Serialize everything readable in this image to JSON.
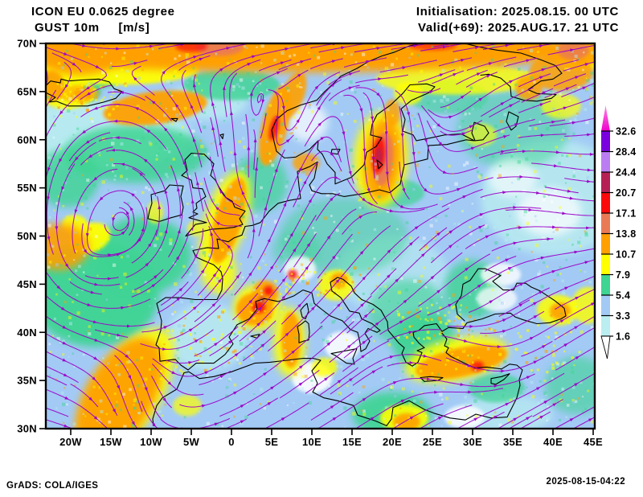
{
  "header": {
    "model": "ICON EU 0.0625 degree",
    "parameter": "GUST 10m     [m/s]",
    "initialisation": "Initialisation: 2025.08.15. 00 UTC",
    "valid": "Valid(+69): 2025.AUG.17. 21 UTC"
  },
  "footer": {
    "credit": "GrADS: COLA/IGES",
    "timestamp": "2025-08-15-04:22"
  },
  "map": {
    "extent": {
      "lon_min": -23.1,
      "lon_max": 45.2,
      "lat_min": 30,
      "lat_max": 70
    },
    "lat_ticks": [
      "70N",
      "65N",
      "60N",
      "55N",
      "50N",
      "45N",
      "40N",
      "35N",
      "30N"
    ],
    "lon_ticks": [
      "20W",
      "15W",
      "10W",
      "5W",
      "0",
      "5E",
      "10E",
      "15E",
      "20E",
      "25E",
      "30E",
      "35E",
      "40E",
      "45E"
    ]
  },
  "colorbar": {
    "unit": "m/s",
    "labels": [
      "32.6",
      "28.4",
      "24.4",
      "20.7",
      "17.1",
      "13.8",
      "10.7",
      "7.9",
      "5.4",
      "3.3",
      "1.6"
    ],
    "segment_colors": [
      "#7a00e0",
      "#bb7df2",
      "#b52155",
      "#fa0a0a",
      "#ea7a55",
      "#ffa000",
      "#ffff00",
      "#3ed492",
      "#a2caf5",
      "#baeef0"
    ],
    "overflow_tip_color": "#ff8ae2",
    "overflow_color": "#ee00cc",
    "streamline_color": "#9b00c8"
  },
  "chart_data": {
    "type": "heatmap",
    "title": "GUST 10m [m/s]",
    "levels": [
      1.6,
      3.3,
      5.4,
      7.9,
      10.7,
      13.8,
      17.1,
      20.7,
      24.4,
      28.4,
      32.6
    ],
    "units": "m/s",
    "legend_position": "right"
  }
}
